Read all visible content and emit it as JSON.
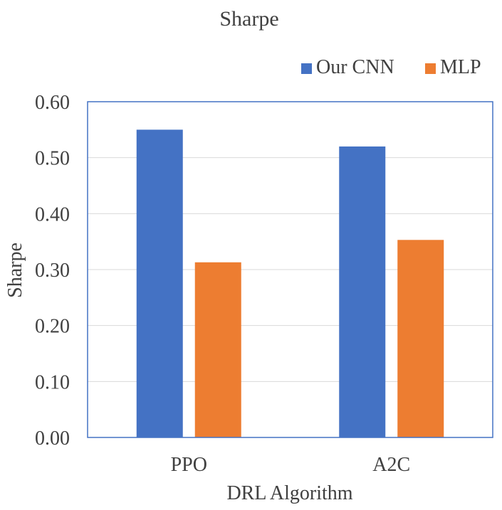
{
  "chart_data": {
    "type": "bar",
    "title": "Sharpe",
    "xlabel": "DRL Algorithm",
    "ylabel": "Sharpe",
    "categories": [
      "PPO",
      "A2C"
    ],
    "series": [
      {
        "name": "Our CNN",
        "values": [
          0.55,
          0.52
        ],
        "color": "#4472C4"
      },
      {
        "name": "MLP",
        "values": [
          0.313,
          0.353
        ],
        "color": "#ED7D31"
      }
    ],
    "ylim": [
      0,
      0.6
    ],
    "yticks": [
      "0.00",
      "0.10",
      "0.20",
      "0.30",
      "0.40",
      "0.50",
      "0.60"
    ],
    "ytick_values": [
      0,
      0.1,
      0.2,
      0.3,
      0.4,
      0.5,
      0.6
    ],
    "grid": true,
    "legend_position": "top-right",
    "gridline_color": "#d9d9d9",
    "frame_color": "#4472C4"
  }
}
